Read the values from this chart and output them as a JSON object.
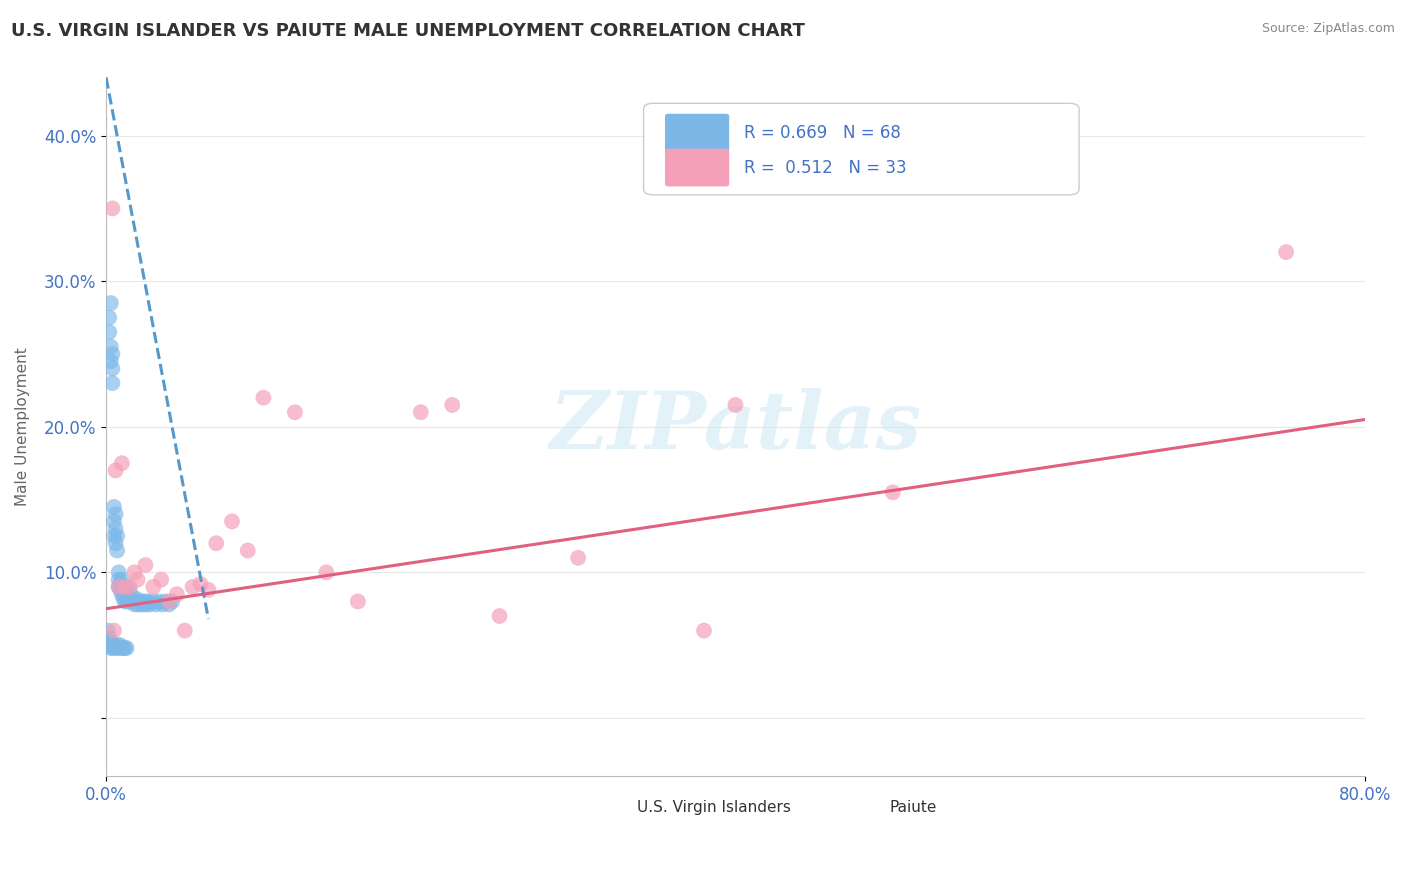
{
  "title": "U.S. VIRGIN ISLANDER VS PAIUTE MALE UNEMPLOYMENT CORRELATION CHART",
  "source": "Source: ZipAtlas.com",
  "ylabel": "Male Unemployment",
  "xlim": [
    0.0,
    0.8
  ],
  "ylim": [
    -0.04,
    0.44
  ],
  "blue_color": "#7bb8e8",
  "pink_color": "#f4a0b8",
  "blue_line_color": "#5599cc",
  "pink_line_color": "#e06080",
  "background_color": "#ffffff",
  "grid_color": "#e8e8e8",
  "blue_scatter_x": [
    0.002,
    0.002,
    0.003,
    0.003,
    0.003,
    0.004,
    0.004,
    0.004,
    0.005,
    0.005,
    0.005,
    0.006,
    0.006,
    0.006,
    0.007,
    0.007,
    0.008,
    0.008,
    0.008,
    0.009,
    0.009,
    0.01,
    0.01,
    0.011,
    0.011,
    0.012,
    0.012,
    0.013,
    0.013,
    0.014,
    0.015,
    0.015,
    0.016,
    0.017,
    0.018,
    0.019,
    0.02,
    0.021,
    0.022,
    0.023,
    0.024,
    0.025,
    0.026,
    0.027,
    0.028,
    0.03,
    0.032,
    0.034,
    0.036,
    0.038,
    0.04,
    0.042,
    0.001,
    0.001,
    0.002,
    0.002,
    0.003,
    0.003,
    0.004,
    0.005,
    0.006,
    0.007,
    0.008,
    0.009,
    0.01,
    0.011,
    0.012,
    0.013
  ],
  "blue_scatter_y": [
    0.265,
    0.275,
    0.245,
    0.255,
    0.285,
    0.23,
    0.24,
    0.25,
    0.125,
    0.135,
    0.145,
    0.12,
    0.13,
    0.14,
    0.115,
    0.125,
    0.09,
    0.095,
    0.1,
    0.088,
    0.092,
    0.085,
    0.095,
    0.082,
    0.088,
    0.08,
    0.09,
    0.082,
    0.088,
    0.08,
    0.082,
    0.088,
    0.08,
    0.082,
    0.078,
    0.082,
    0.078,
    0.08,
    0.078,
    0.08,
    0.078,
    0.08,
    0.078,
    0.08,
    0.078,
    0.08,
    0.078,
    0.08,
    0.078,
    0.08,
    0.078,
    0.08,
    0.055,
    0.06,
    0.05,
    0.055,
    0.048,
    0.052,
    0.048,
    0.05,
    0.048,
    0.05,
    0.048,
    0.05,
    0.048,
    0.048,
    0.048,
    0.048
  ],
  "pink_scatter_x": [
    0.004,
    0.005,
    0.006,
    0.008,
    0.01,
    0.012,
    0.015,
    0.018,
    0.02,
    0.025,
    0.03,
    0.035,
    0.04,
    0.045,
    0.05,
    0.055,
    0.06,
    0.065,
    0.07,
    0.08,
    0.09,
    0.1,
    0.12,
    0.14,
    0.16,
    0.2,
    0.22,
    0.25,
    0.3,
    0.38,
    0.4,
    0.5,
    0.75
  ],
  "pink_scatter_y": [
    0.35,
    0.06,
    0.17,
    0.09,
    0.175,
    0.09,
    0.09,
    0.1,
    0.095,
    0.105,
    0.09,
    0.095,
    0.08,
    0.085,
    0.06,
    0.09,
    0.092,
    0.088,
    0.12,
    0.135,
    0.115,
    0.22,
    0.21,
    0.1,
    0.08,
    0.21,
    0.215,
    0.07,
    0.11,
    0.06,
    0.215,
    0.155,
    0.32
  ],
  "blue_trend_x": [
    0.0,
    0.065
  ],
  "blue_trend_y": [
    0.44,
    0.068
  ],
  "pink_trend_x": [
    0.0,
    0.8
  ],
  "pink_trend_y": [
    0.075,
    0.205
  ],
  "yticks": [
    0.0,
    0.1,
    0.2,
    0.3,
    0.4
  ],
  "ytick_labels": [
    "",
    "10.0%",
    "20.0%",
    "30.0%",
    "40.0%"
  ]
}
